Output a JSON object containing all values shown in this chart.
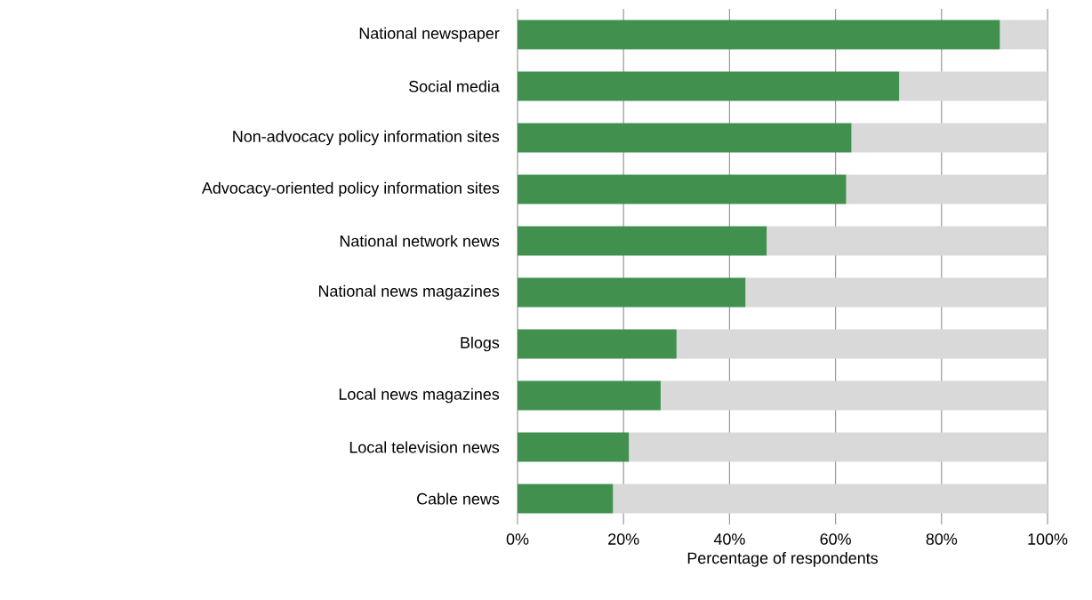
{
  "chart_data": {
    "type": "bar",
    "orientation": "horizontal",
    "stacked": true,
    "xlabel": "Percentage of respondents",
    "categories": [
      "National newspaper",
      "Social media",
      "Non-advocacy policy information sites",
      "Advocacy-oriented policy information sites",
      "National network news",
      "National news magazines",
      "Blogs",
      "Local news magazines",
      "Local television news",
      "Cable news"
    ],
    "series": [
      {
        "color": "#41904e",
        "values": [
          91,
          72,
          63,
          62,
          47,
          43,
          30,
          27,
          21,
          18
        ]
      },
      {
        "color": "#d9d9d9",
        "values": [
          9,
          28,
          37,
          38,
          53,
          57,
          70,
          73,
          79,
          82
        ]
      }
    ],
    "xlim": [
      0,
      100
    ],
    "xticks": [
      {
        "value": 0,
        "label": "0%"
      },
      {
        "value": 20,
        "label": "20%"
      },
      {
        "value": 40,
        "label": "40%"
      },
      {
        "value": 60,
        "label": "60%"
      },
      {
        "value": 80,
        "label": "80%"
      },
      {
        "value": 100,
        "label": "100%"
      }
    ],
    "grid": "x"
  }
}
